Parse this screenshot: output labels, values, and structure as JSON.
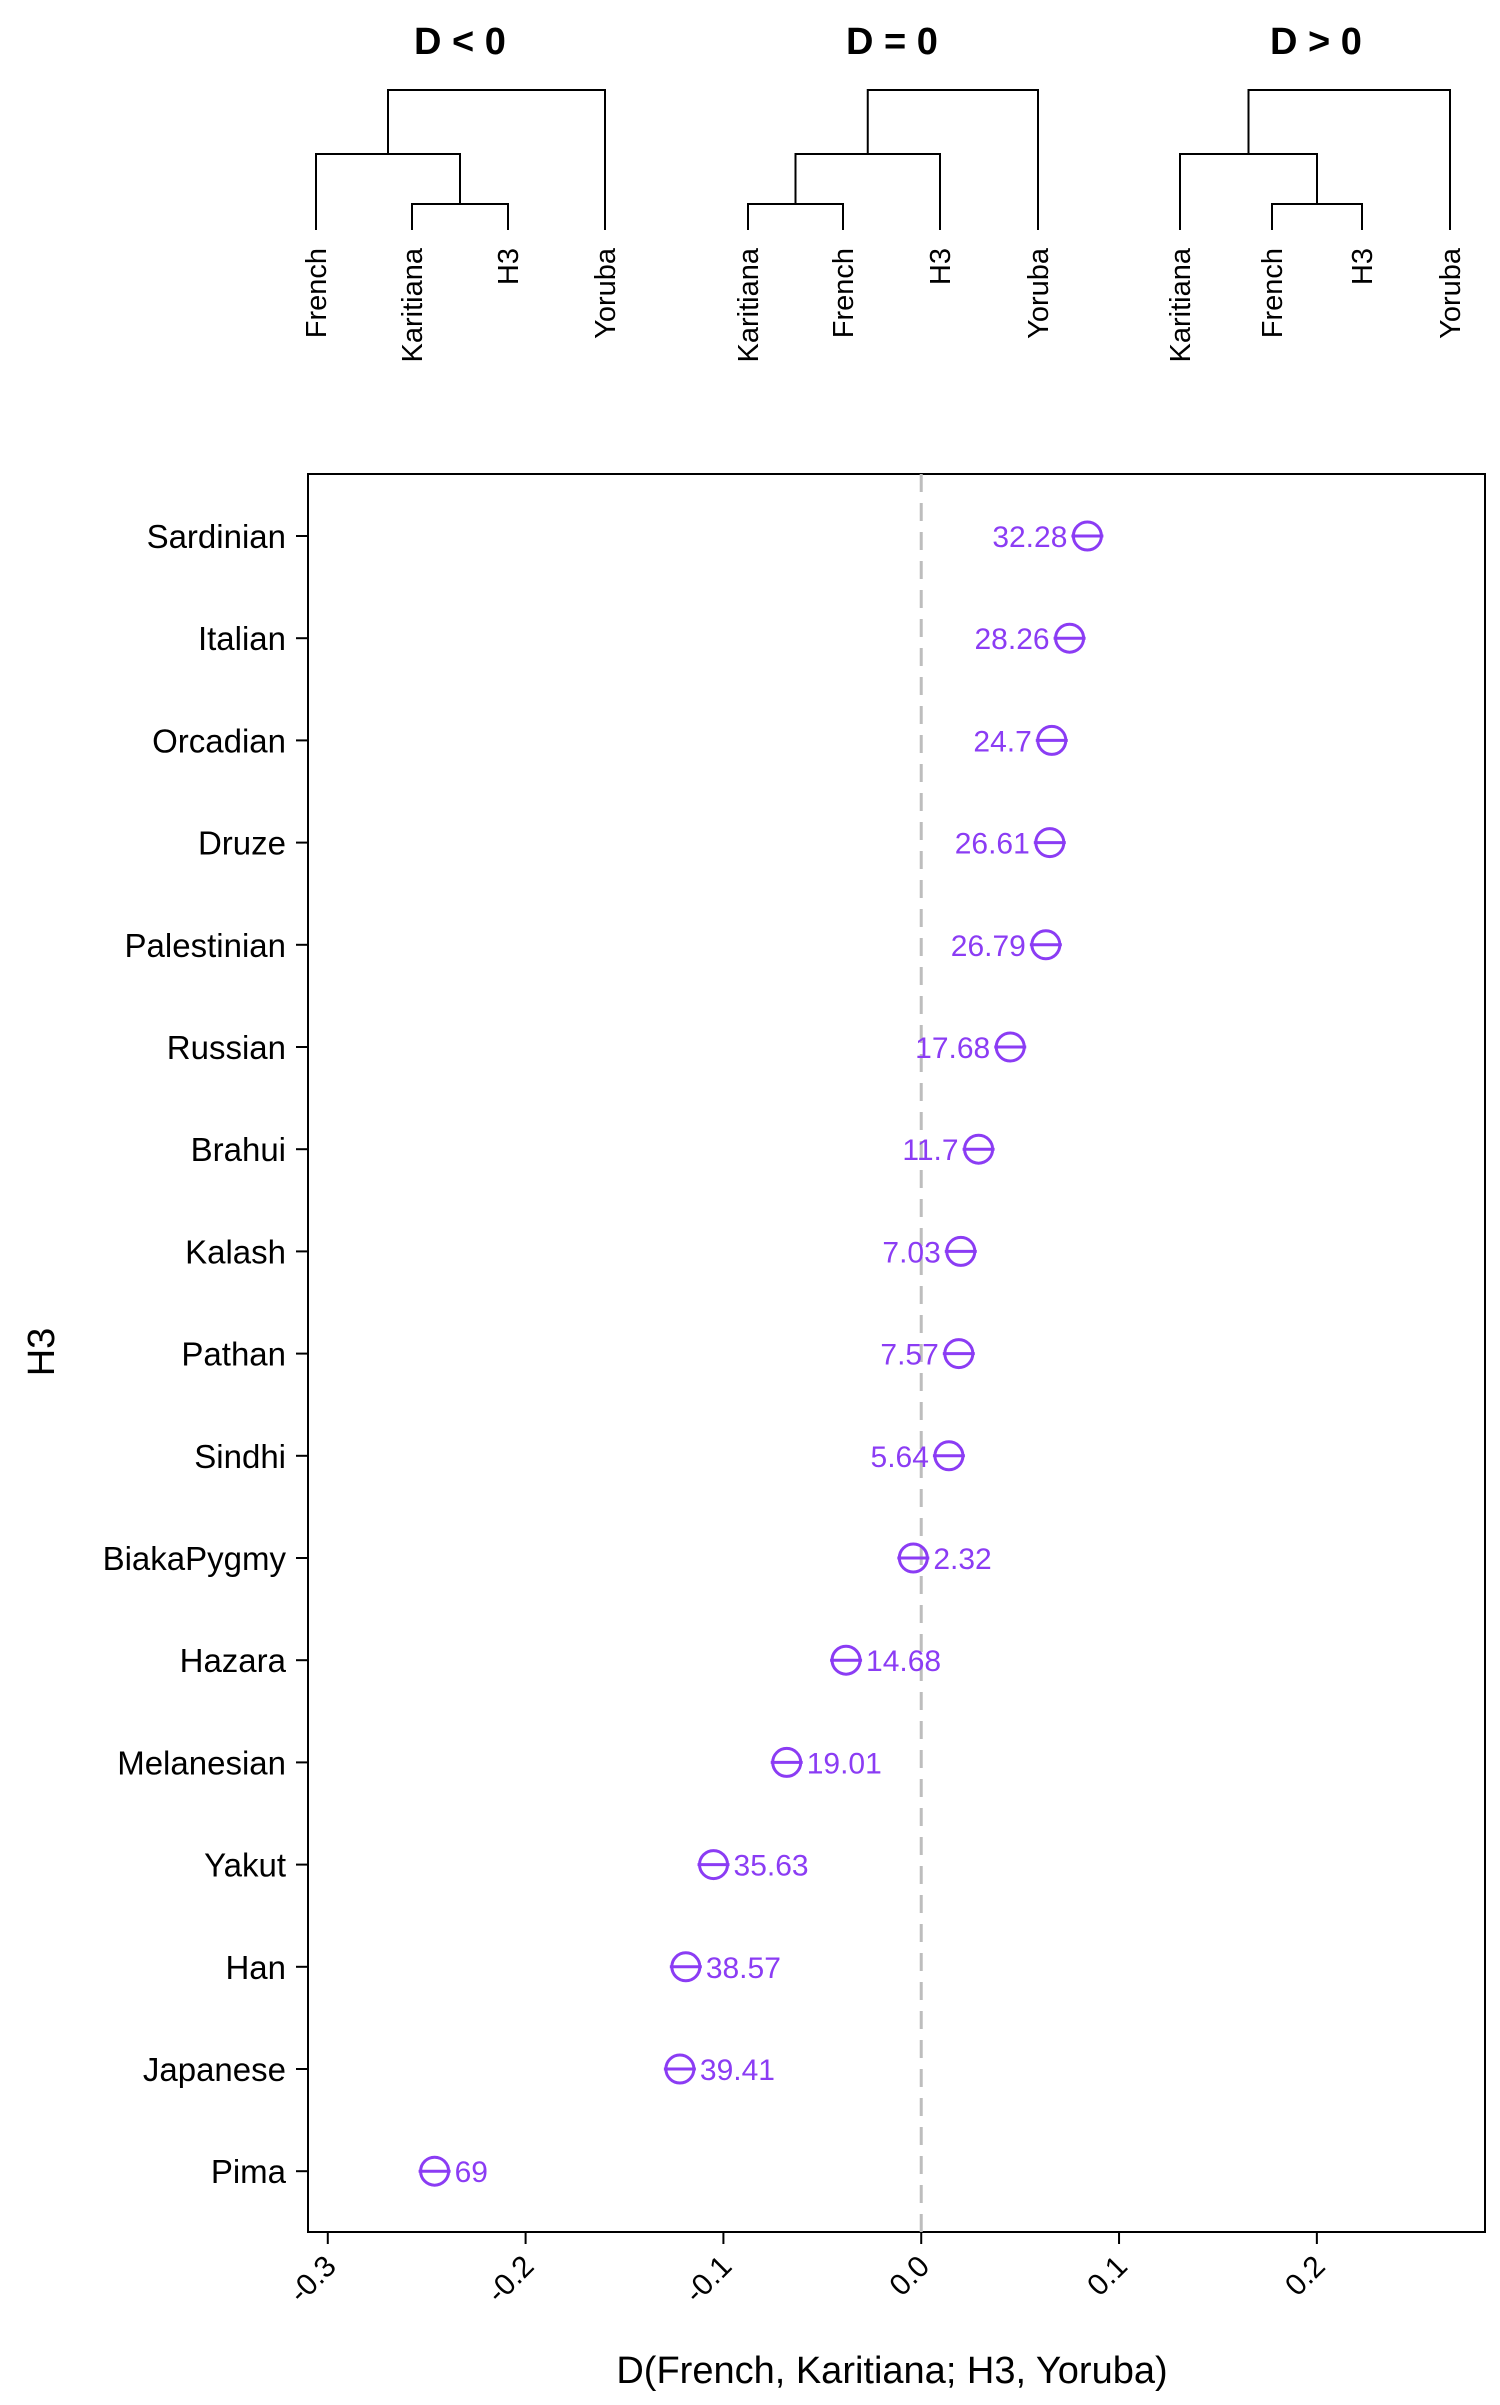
{
  "colors": {
    "point": "#8b3cf4",
    "axis": "#000000",
    "zero_line": "#bdbdbd",
    "tick_text": "#000000"
  },
  "trees": [
    {
      "title": "D < 0",
      "leaves": [
        "French",
        "Karitiana",
        "H3",
        "Yoruba"
      ],
      "structure": "(French,(Karitiana,H3)),Yoruba"
    },
    {
      "title": "D = 0",
      "leaves": [
        "Karitiana",
        "French",
        "H3",
        "Yoruba"
      ],
      "structure": "((Karitiana,French),H3),Yoruba"
    },
    {
      "title": "D > 0",
      "leaves": [
        "Karitiana",
        "French",
        "H3",
        "Yoruba"
      ],
      "structure": "(Karitiana,(French,H3)),Yoruba"
    }
  ],
  "chart_data": {
    "type": "scatter",
    "xlabel": "D(French, Karitiana; H3, Yoruba)",
    "ylabel": "H3",
    "xlim": [
      -0.31,
      0.285
    ],
    "xticks": [
      -0.3,
      -0.2,
      -0.1,
      0.0,
      0.1,
      0.2
    ],
    "xtick_labels": [
      "-0.3",
      "-0.2",
      "-0.1",
      "0.0",
      "0.1",
      "0.2"
    ],
    "reference_line": 0,
    "grid": false,
    "legend": "none",
    "points": [
      {
        "name": "Sardinian",
        "d": 0.084,
        "z": "32.28",
        "label_side": "left"
      },
      {
        "name": "Italian",
        "d": 0.075,
        "z": "28.26",
        "label_side": "left"
      },
      {
        "name": "Orcadian",
        "d": 0.066,
        "z": "24.7",
        "label_side": "left"
      },
      {
        "name": "Druze",
        "d": 0.065,
        "z": "26.61",
        "label_side": "left"
      },
      {
        "name": "Palestinian",
        "d": 0.063,
        "z": "26.79",
        "label_side": "left"
      },
      {
        "name": "Russian",
        "d": 0.045,
        "z": "17.68",
        "label_side": "left"
      },
      {
        "name": "Brahui",
        "d": 0.029,
        "z": "11.7",
        "label_side": "left"
      },
      {
        "name": "Kalash",
        "d": 0.02,
        "z": "7.03",
        "label_side": "left"
      },
      {
        "name": "Pathan",
        "d": 0.019,
        "z": "7.57",
        "label_side": "left"
      },
      {
        "name": "Sindhi",
        "d": 0.014,
        "z": "5.64",
        "label_side": "left"
      },
      {
        "name": "BiakaPygmy",
        "d": -0.004,
        "z": "2.32",
        "label_side": "right"
      },
      {
        "name": "Hazara",
        "d": -0.038,
        "z": "14.68",
        "label_side": "right"
      },
      {
        "name": "Melanesian",
        "d": -0.068,
        "z": "19.01",
        "label_side": "right"
      },
      {
        "name": "Yakut",
        "d": -0.105,
        "z": "35.63",
        "label_side": "right"
      },
      {
        "name": "Han",
        "d": -0.119,
        "z": "38.57",
        "label_side": "right"
      },
      {
        "name": "Japanese",
        "d": -0.122,
        "z": "39.41",
        "label_side": "right"
      },
      {
        "name": "Pima",
        "d": -0.246,
        "z": "69",
        "label_side": "right"
      }
    ]
  }
}
